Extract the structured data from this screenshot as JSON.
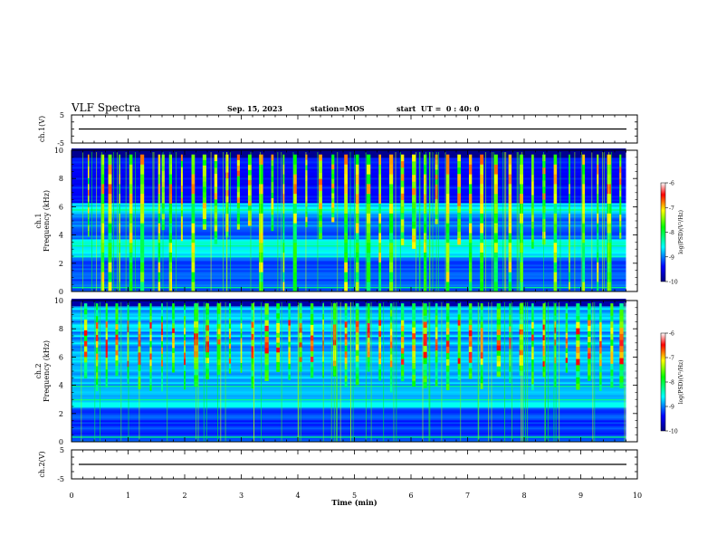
{
  "header": {
    "title": "VLF Spectra",
    "date": "Sep. 15, 2023",
    "station": "station=MOS",
    "start_ut": "start  UT =  0 : 40: 0"
  },
  "chart_data": {
    "type": "heatmap",
    "x": {
      "label": "Time  (min)",
      "range": [
        0,
        10
      ],
      "ticks": [
        "0",
        "1",
        "2",
        "3",
        "4",
        "5",
        "6",
        "7",
        "8",
        "9",
        "10"
      ]
    },
    "panels": [
      {
        "id": "ch1-voltage",
        "type": "line",
        "ylabel": "ch.1(V)",
        "ylim": [
          -5,
          5
        ],
        "yticks": [
          "5",
          "-5"
        ],
        "values": [
          0,
          0
        ]
      },
      {
        "id": "ch1-spectrogram",
        "type": "heatmap",
        "ylabel_channel": "ch.1",
        "ylabel": "Frequency  (kHz)",
        "ylim": [
          0,
          10
        ],
        "yticks": [
          "0",
          "2",
          "4",
          "6",
          "8",
          "10"
        ],
        "data_end_min": 9.8,
        "bursts_min": [
          0.3,
          0.55,
          0.68,
          0.85,
          1.05,
          1.25,
          1.55,
          1.62,
          1.75,
          1.95,
          2.15,
          2.35,
          2.55,
          2.75,
          2.95,
          3.15,
          3.35,
          3.55,
          3.75,
          3.95,
          4.15,
          4.4,
          4.62,
          4.85,
          5.05,
          5.25,
          5.45,
          5.65,
          5.85,
          6.05,
          6.25,
          6.45,
          6.65,
          6.85,
          7.05,
          7.25,
          7.5,
          7.75,
          7.95,
          8.15,
          8.35,
          8.55,
          8.8,
          9.05,
          9.3,
          9.5,
          9.7
        ],
        "colorbar": {
          "label": "log(PSD)(V²/Hz)",
          "ticks": [
            "-6",
            "-7",
            "-8",
            "-9",
            "-10"
          ],
          "range": [
            -10,
            -6
          ]
        }
      },
      {
        "id": "ch2-spectrogram",
        "type": "heatmap",
        "ylabel_channel": "ch.2",
        "ylabel": "Frequency  (kHz)",
        "ylim": [
          0,
          10
        ],
        "yticks": [
          "0",
          "2",
          "4",
          "6",
          "8",
          "10"
        ],
        "data_end_min": 9.8,
        "bursts_min": [
          0.25,
          0.45,
          0.62,
          0.8,
          1.0,
          1.2,
          1.4,
          1.6,
          1.8,
          2.0,
          2.2,
          2.4,
          2.6,
          2.8,
          3.0,
          3.2,
          3.45,
          3.65,
          3.85,
          4.05,
          4.25,
          4.45,
          4.65,
          4.85,
          5.05,
          5.25,
          5.45,
          5.65,
          5.85,
          6.05,
          6.25,
          6.45,
          6.65,
          6.85,
          7.05,
          7.25,
          7.55,
          7.75,
          7.95,
          8.15,
          8.35,
          8.55,
          8.75,
          8.95,
          9.15,
          9.35,
          9.55,
          9.72
        ],
        "colorbar": {
          "label": "log(PSD)(V²/Hz)",
          "ticks": [
            "-6",
            "-7",
            "-8",
            "-9",
            "-10"
          ],
          "range": [
            -10,
            -6
          ]
        }
      },
      {
        "id": "ch2-voltage",
        "type": "line",
        "ylabel": "ch.2(V)",
        "ylim": [
          -5,
          5
        ],
        "yticks": [
          "5",
          "-5"
        ],
        "values": [
          0,
          0
        ]
      }
    ],
    "colors": {
      "low": "#000080",
      "mid_low": "#0000ff",
      "mid": "#00ffff",
      "mid_high": "#00ff00",
      "high": "#ffff00",
      "peak": "#ff0000",
      "top": "#ffffff"
    }
  }
}
